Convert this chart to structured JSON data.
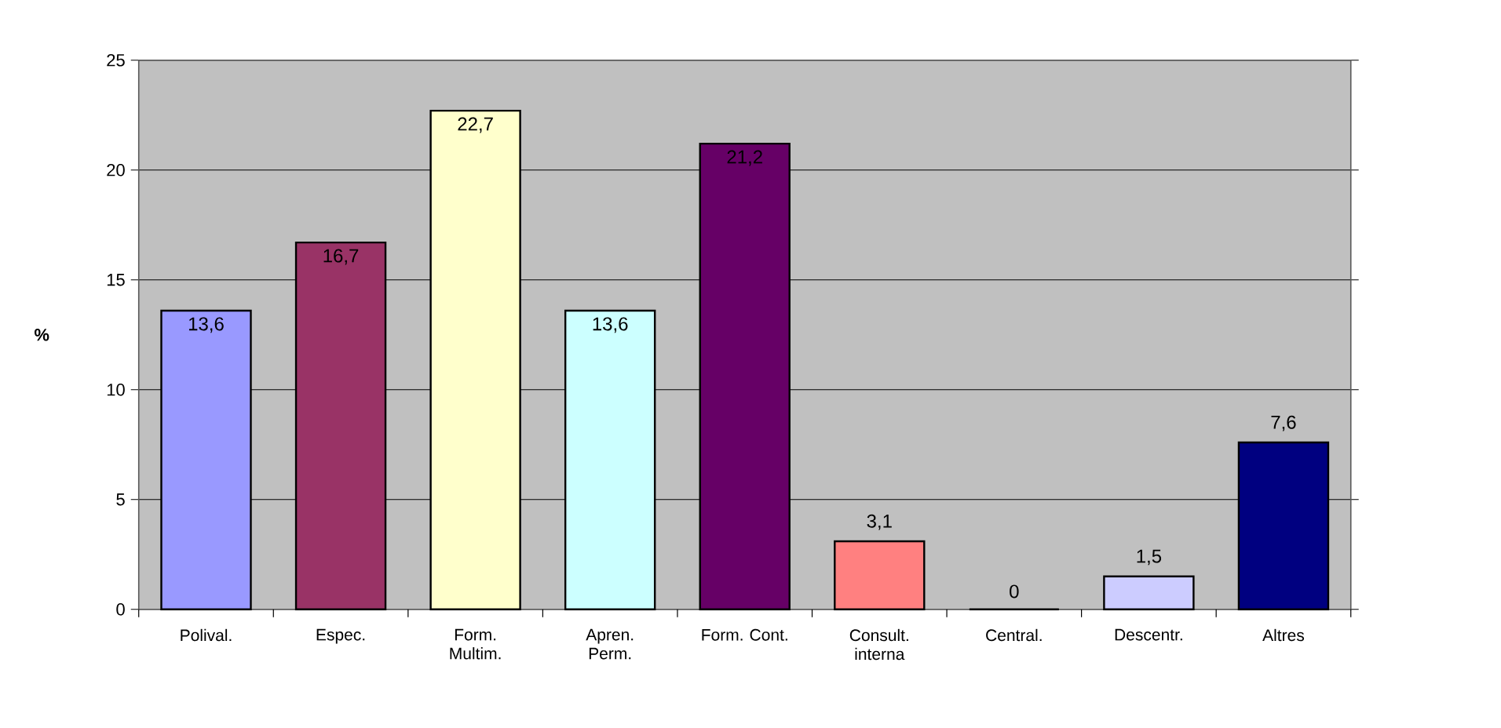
{
  "chart_data": {
    "type": "bar",
    "ylabel": "%",
    "categories": [
      "Polival.",
      "Espec.",
      "Form. Multim.",
      "Apren. Perm.",
      "Form. Cont.",
      "Consult. interna",
      "Central.",
      "Descentr.",
      "Altres"
    ],
    "values": [
      13.6,
      16.7,
      22.7,
      13.6,
      21.2,
      3.1,
      0,
      1.5,
      7.6
    ],
    "value_labels": [
      "13,6",
      "16,7",
      "22,7",
      "13,6",
      "21,2",
      "3,1",
      "0",
      "1,5",
      "7,6"
    ],
    "colors": [
      "#9999ff",
      "#993366",
      "#ffffcc",
      "#ccffff",
      "#660066",
      "#ff8080",
      "#0066cc",
      "#ccccff",
      "#000080"
    ],
    "ylim": [
      0,
      25
    ],
    "yticks": [
      0,
      5,
      10,
      15,
      20,
      25
    ],
    "grid": "y"
  }
}
